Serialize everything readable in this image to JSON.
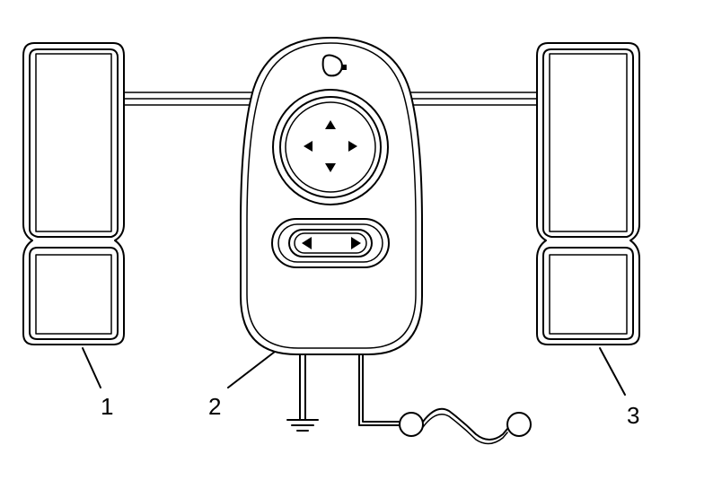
{
  "callouts": [
    {
      "id": "1",
      "label": "1"
    },
    {
      "id": "2",
      "label": "2"
    },
    {
      "id": "3",
      "label": "3"
    }
  ],
  "icons": {
    "lamp": "reading-light-icon",
    "direction_arrows": [
      "up-arrow-icon",
      "down-arrow-icon",
      "left-arrow-icon",
      "right-arrow-icon"
    ],
    "slider_arrows": [
      "left-arrow-icon",
      "right-arrow-icon"
    ],
    "ground": "ground-symbol-icon"
  }
}
